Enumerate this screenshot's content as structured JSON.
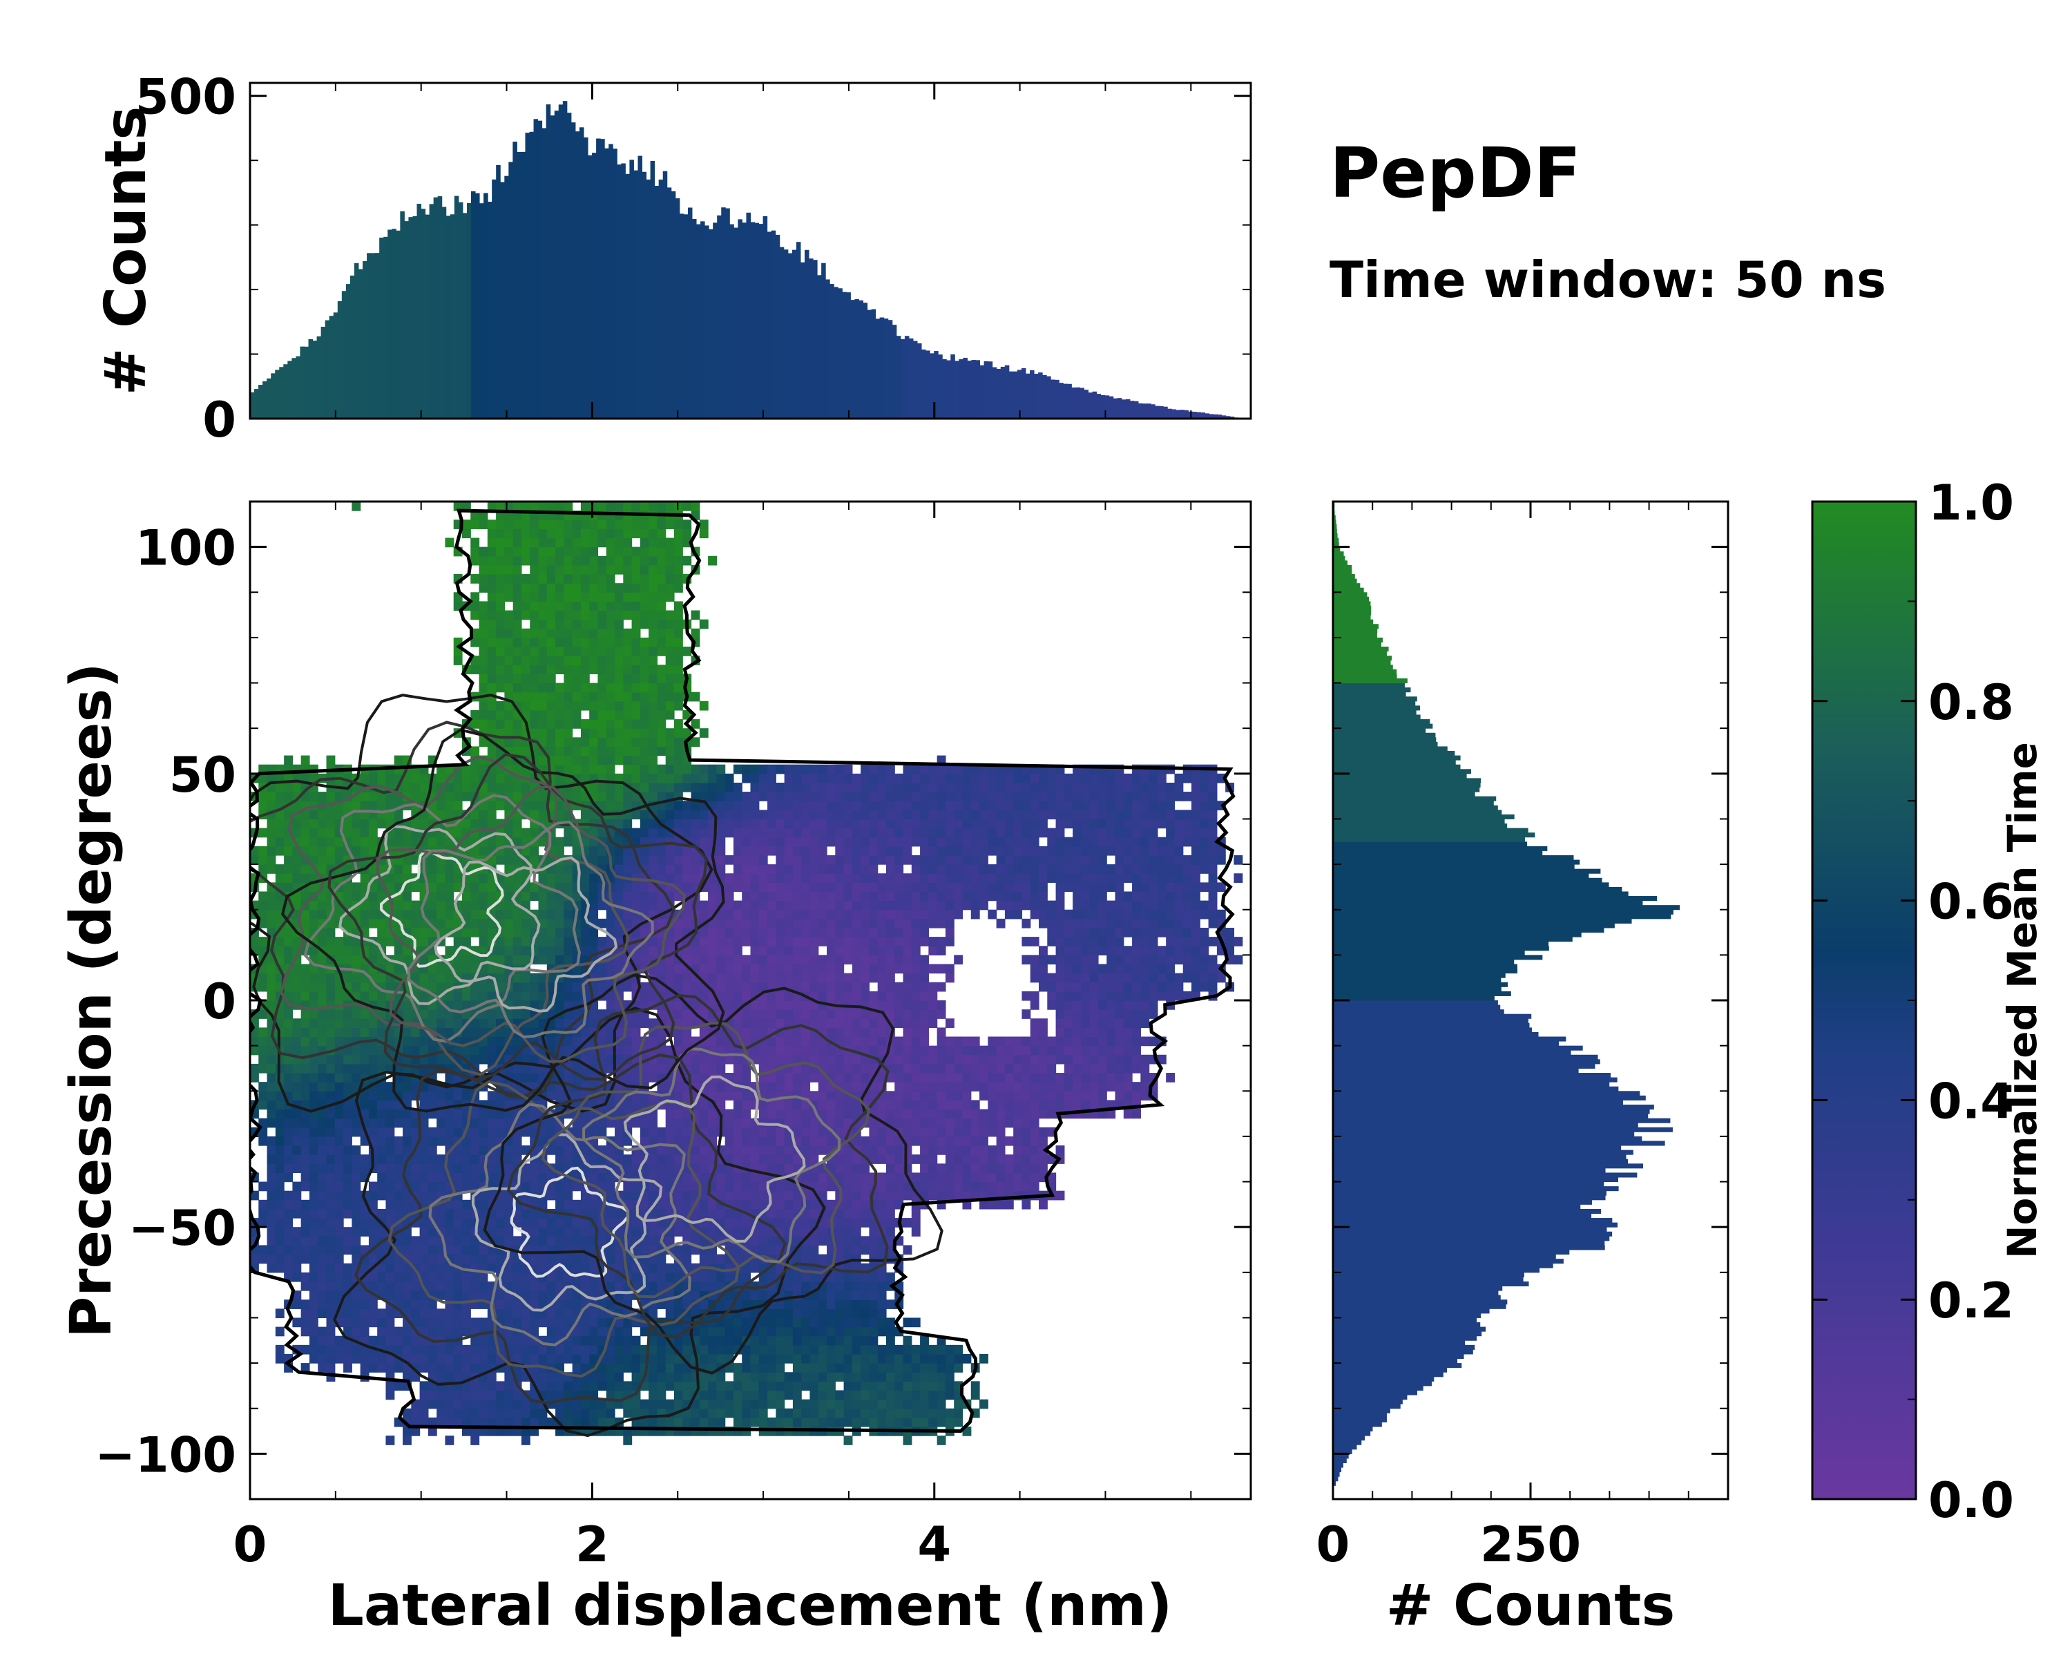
{
  "annotation": {
    "title": "PepDF",
    "subtitle": "Time window: 50 ns"
  },
  "colors": {
    "green": "#228B22",
    "teal": "#1B5E5A",
    "navy": "#0B3D6B",
    "blue": "#22408A",
    "purple": "#6A38A0",
    "axis": "#000000"
  },
  "chart_data": [
    {
      "id": "main_map",
      "type": "heatmap",
      "xlabel": "Lateral displacement (nm)",
      "ylabel": "Precession (degrees)",
      "xlim": [
        0,
        5.85
      ],
      "ylim": [
        -110,
        110
      ],
      "xticks": [
        {
          "v": 0,
          "label": "0"
        },
        {
          "v": 2,
          "label": "2"
        },
        {
          "v": 4,
          "label": "4"
        }
      ],
      "yticks": [
        {
          "v": 100,
          "label": "100"
        },
        {
          "v": 50,
          "label": "50"
        },
        {
          "v": 0,
          "label": "0"
        },
        {
          "v": -50,
          "label": "−50"
        },
        {
          "v": -100,
          "label": "−100"
        }
      ],
      "color_by": "Normalized Mean Time",
      "regions": [
        {
          "name": "upper-green",
          "x": 1.9,
          "y": 88,
          "value": 0.95
        },
        {
          "name": "left-green",
          "x": 0.5,
          "y": 15,
          "value": 0.92
        },
        {
          "name": "bottom-teal",
          "x": 3.6,
          "y": -85,
          "value": 0.7
        },
        {
          "name": "center-purple",
          "x": 3.4,
          "y": 0,
          "value": 0.12
        },
        {
          "name": "lower-purple",
          "x": 3.7,
          "y": -40,
          "value": 0.15
        },
        {
          "name": "right-blue",
          "x": 4.6,
          "y": 40,
          "value": 0.35
        },
        {
          "name": "left-blue",
          "x": 1.2,
          "y": -40,
          "value": 0.4
        }
      ],
      "density_peaks": [
        {
          "x": 1.15,
          "y": 20,
          "level": 1.0
        },
        {
          "x": 1.85,
          "y": -50,
          "level": 0.9
        },
        {
          "x": 2.7,
          "y": -35,
          "level": 0.75
        },
        {
          "x": 1.6,
          "y": 15,
          "level": 0.7
        }
      ]
    },
    {
      "id": "top_histogram",
      "type": "bar",
      "ylabel": "# Counts",
      "xlim": [
        0,
        5.85
      ],
      "ylim": [
        0,
        520
      ],
      "yticks": [
        {
          "v": 0,
          "label": "0"
        },
        {
          "v": 500,
          "label": "500"
        }
      ],
      "x": [
        0.0,
        0.2,
        0.4,
        0.6,
        0.8,
        1.0,
        1.2,
        1.4,
        1.6,
        1.7,
        1.8,
        2.0,
        2.2,
        2.4,
        2.6,
        2.8,
        3.0,
        3.2,
        3.4,
        3.6,
        3.8,
        4.0,
        4.2,
        4.4,
        4.6,
        4.8,
        5.0,
        5.2,
        5.4,
        5.6,
        5.7,
        5.8
      ],
      "values": [
        40,
        80,
        130,
        220,
        290,
        320,
        330,
        350,
        440,
        470,
        480,
        420,
        400,
        370,
        310,
        310,
        300,
        260,
        220,
        180,
        130,
        100,
        90,
        80,
        70,
        50,
        35,
        25,
        15,
        8,
        5,
        0
      ]
    },
    {
      "id": "right_histogram",
      "type": "bar",
      "orientation": "horizontal",
      "xlabel": "# Counts",
      "xlim": [
        0,
        500
      ],
      "ylim": [
        -110,
        110
      ],
      "xticks": [
        {
          "v": 0,
          "label": "0"
        },
        {
          "v": 250,
          "label": "250"
        }
      ],
      "y": [
        108,
        100,
        90,
        80,
        70,
        60,
        50,
        40,
        35,
        30,
        25,
        20,
        15,
        10,
        5,
        0,
        -5,
        -10,
        -15,
        -20,
        -25,
        -30,
        -35,
        -40,
        -45,
        -50,
        -55,
        -60,
        -70,
        -80,
        -90,
        -100,
        -108
      ],
      "values": [
        2,
        8,
        40,
        60,
        90,
        120,
        170,
        220,
        260,
        300,
        360,
        440,
        330,
        250,
        230,
        210,
        250,
        300,
        330,
        360,
        420,
        400,
        380,
        360,
        320,
        360,
        320,
        250,
        190,
        160,
        80,
        20,
        0
      ]
    },
    {
      "id": "colorbar",
      "type": "heatmap",
      "ylabel": "Normalized Mean Time",
      "ylim": [
        0,
        1
      ],
      "yticks": [
        {
          "v": 0,
          "label": "0.0"
        },
        {
          "v": 0.2,
          "label": "0.2"
        },
        {
          "v": 0.4,
          "label": "0.4"
        },
        {
          "v": 0.6,
          "label": "0.6"
        },
        {
          "v": 0.8,
          "label": "0.8"
        },
        {
          "v": 1.0,
          "label": "1.0"
        }
      ]
    }
  ]
}
